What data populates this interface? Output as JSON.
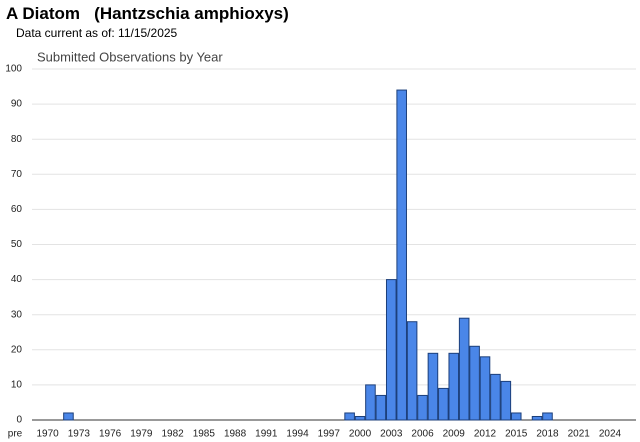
{
  "header": {
    "title": "A Diatom   (Hantzschia amphioxys)",
    "subtitle": "Data current as of: 11/15/2025"
  },
  "chart_data": {
    "type": "bar",
    "title": "Submitted Observations by Year",
    "categories": [
      "pre",
      "1970",
      null,
      null,
      "1973",
      null,
      null,
      "1976",
      null,
      null,
      "1979",
      null,
      null,
      "1982",
      null,
      null,
      "1985",
      null,
      null,
      "1988",
      null,
      null,
      "1991",
      null,
      null,
      "1994",
      null,
      null,
      "1997",
      null,
      null,
      "2000",
      null,
      null,
      "2003",
      null,
      null,
      "2006",
      null,
      null,
      "2009",
      null,
      null,
      "2012",
      null,
      null,
      "2015",
      null,
      null,
      "2018",
      null,
      null,
      "2021",
      null,
      null,
      "2024",
      null,
      null
    ],
    "values": [
      0,
      0,
      0,
      2,
      0,
      0,
      0,
      0,
      0,
      0,
      0,
      0,
      0,
      0,
      0,
      0,
      0,
      0,
      0,
      0,
      0,
      0,
      0,
      0,
      0,
      0,
      0,
      0,
      0,
      0,
      2,
      1,
      10,
      7,
      40,
      94,
      28,
      7,
      19,
      9,
      19,
      29,
      21,
      18,
      13,
      11,
      2,
      0,
      1,
      2,
      0,
      0,
      0,
      0,
      0,
      0,
      0,
      0
    ],
    "color": "#4a86e8",
    "edge_color": "#1c3f7a",
    "ylim": [
      0,
      100
    ],
    "yticks": [
      0,
      10,
      20,
      30,
      40,
      50,
      60,
      70,
      80,
      90,
      100
    ],
    "grid": true
  }
}
